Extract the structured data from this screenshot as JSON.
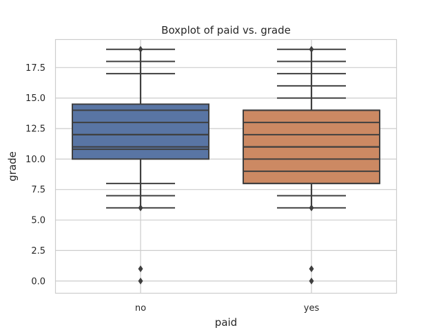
{
  "chart_data": {
    "type": "boxplot",
    "title": "Boxplot of paid vs. grade",
    "xlabel": "paid",
    "ylabel": "grade",
    "categories": [
      "no",
      "yes"
    ],
    "ylim": [
      -1,
      19.8
    ],
    "yticks": [
      0.0,
      2.5,
      5.0,
      7.5,
      10.0,
      12.5,
      15.0,
      17.5
    ],
    "ytick_labels": [
      "0.0",
      "2.5",
      "5.0",
      "7.5",
      "10.0",
      "12.5",
      "15.0",
      "17.5"
    ],
    "grid": true,
    "series": [
      {
        "category": "no",
        "color": "#5975a4",
        "q1": 10,
        "median": 12,
        "q3": 14.5,
        "whisker_low": 6,
        "whisker_high": 19,
        "level_lines": [
          6,
          7,
          8,
          10.8,
          11,
          12,
          13,
          14,
          17,
          18,
          19
        ],
        "outliers": [
          0,
          1
        ]
      },
      {
        "category": "yes",
        "color": "#cc8963",
        "q1": 8,
        "median": 11,
        "q3": 14,
        "whisker_low": 6,
        "whisker_high": 19,
        "level_lines": [
          6,
          7,
          8,
          9,
          10,
          11,
          12,
          13,
          14,
          15,
          16,
          17,
          18,
          19
        ],
        "outliers": [
          0,
          1
        ]
      }
    ],
    "line_color": "#3f3f3f",
    "grid_color": "#cccccc",
    "frame_color": "#cccccc"
  }
}
